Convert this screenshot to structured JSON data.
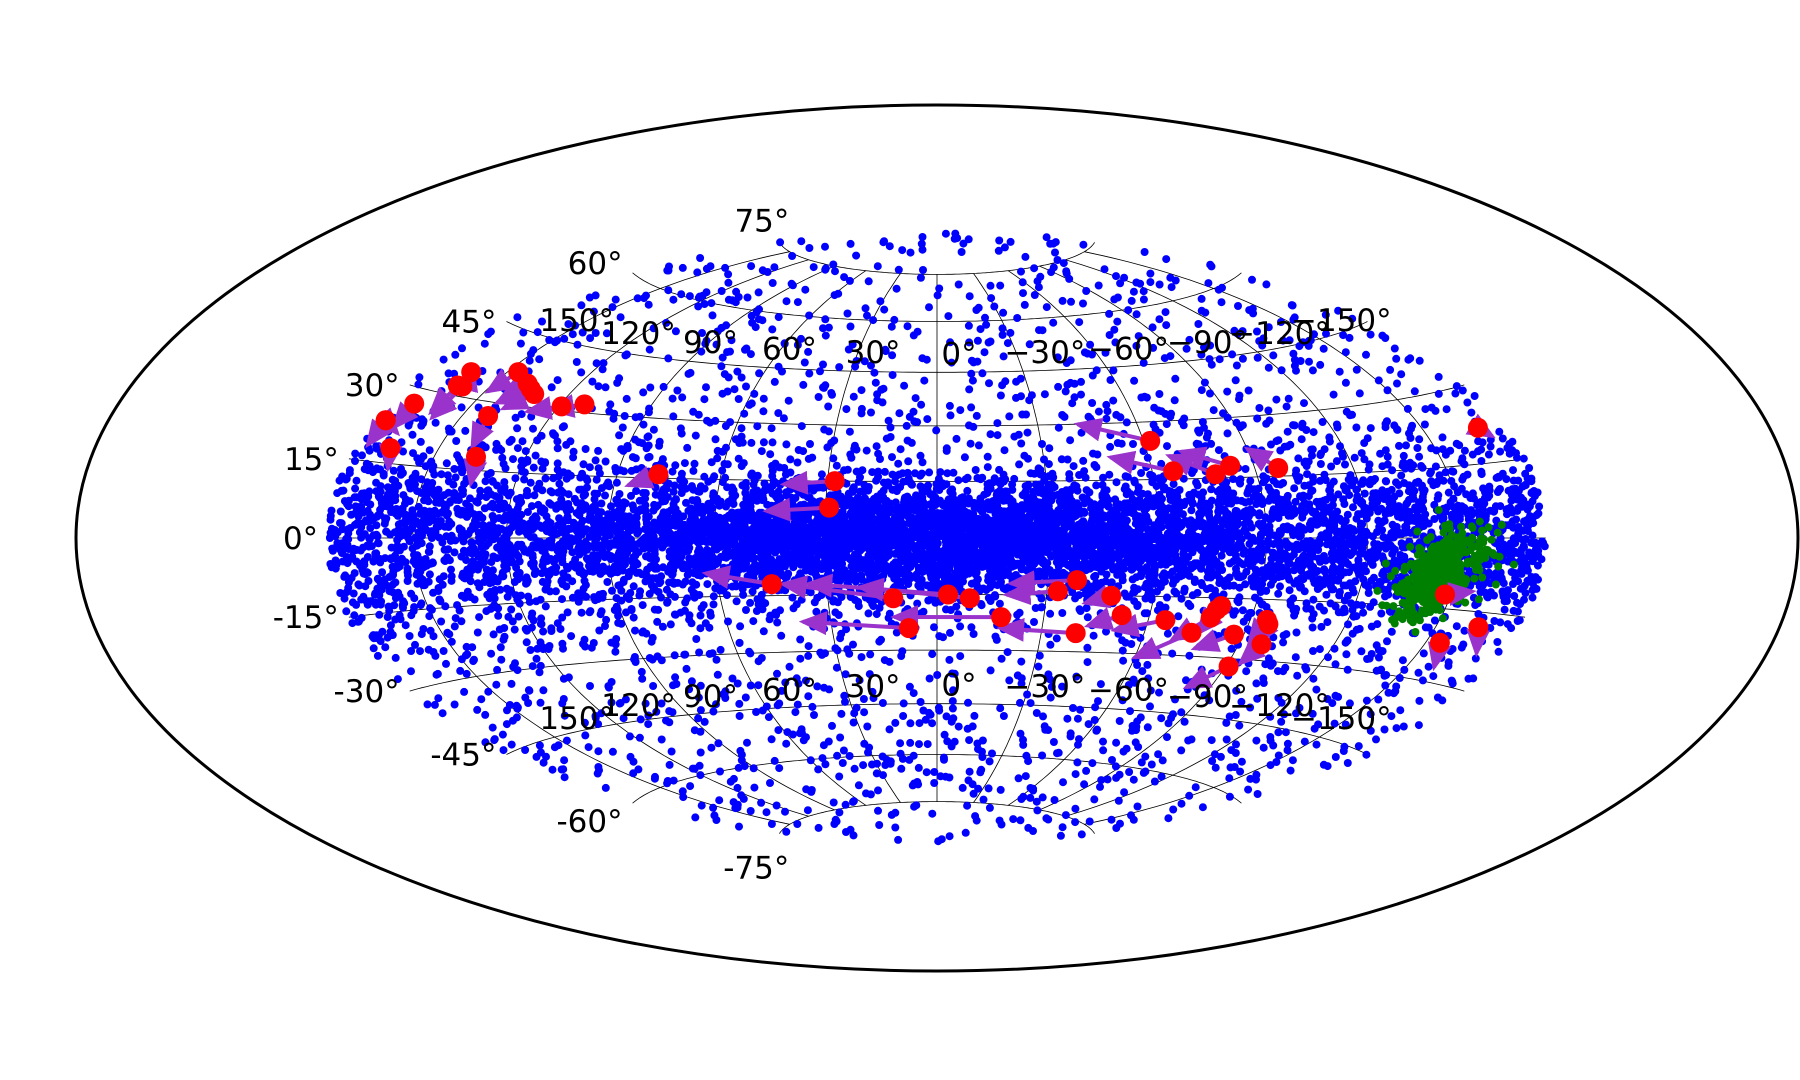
{
  "chart_data": {
    "type": "scatter",
    "projection": "hammer-aitoff",
    "title": "",
    "xlabel": "",
    "ylabel": "",
    "grid": true,
    "xlim": [
      -180,
      180
    ],
    "ylim": [
      -90,
      90
    ],
    "longitude_ticks": [
      "−150°",
      "−120°",
      "−90°",
      "−60°",
      "−30°",
      "0°",
      "30°",
      "60°",
      "90°",
      "120°",
      "150°"
    ],
    "longitude_tick_values": [
      -150,
      -120,
      -90,
      -60,
      -30,
      0,
      30,
      60,
      90,
      120,
      150
    ],
    "longitude_tick_rows_lat": [
      60,
      -60
    ],
    "latitude_ticks": [
      "75°",
      "60°",
      "45°",
      "30°",
      "15°",
      "0°",
      "-15°",
      "-30°",
      "-45°",
      "-60°",
      "-75°"
    ],
    "latitude_tick_values": [
      75,
      60,
      45,
      30,
      15,
      0,
      -15,
      -30,
      -45,
      -60,
      -75
    ],
    "colors": {
      "background_sources": "#0000ff",
      "cluster_sources": "#008000",
      "highlighted": "#ff0000",
      "arrows": "#9933cc",
      "frame": "#000000"
    },
    "background_sources": {
      "name": "",
      "count": 9000,
      "distribution": "concentrated along 0° latitude, densest near 0° longitude, sparse toward the poles"
    },
    "cluster_sources": {
      "name": "",
      "count": 500,
      "center": [
        -145,
        -8
      ],
      "spread": [
        12,
        7
      ]
    },
    "highlighted": [
      {
        "x": -170,
        "y": 22,
        "dx": -3,
        "dy": -2
      },
      {
        "x": -97,
        "y": 17,
        "dx": 7,
        "dy": 5
      },
      {
        "x": -83,
        "y": 18,
        "dx": 13,
        "dy": 4
      },
      {
        "x": -78,
        "y": 16,
        "dx": 12,
        "dy": 5
      },
      {
        "x": -66,
        "y": 17,
        "dx": 17,
        "dy": 4
      },
      {
        "x": -62,
        "y": 25,
        "dx": 20,
        "dy": 5
      },
      {
        "x": 28,
        "y": 15,
        "dx": 14,
        "dy": -1
      },
      {
        "x": 29,
        "y": 8,
        "dx": 17,
        "dy": -1
      },
      {
        "x": 78,
        "y": 16,
        "dx": 8,
        "dy": -3
      },
      {
        "x": 112,
        "y": 32,
        "dx": 10,
        "dy": -2
      },
      {
        "x": 119,
        "y": 31,
        "dx": 10,
        "dy": -2
      },
      {
        "x": 132,
        "y": 33,
        "dx": 6,
        "dy": -4
      },
      {
        "x": 135,
        "y": 34,
        "dx": 7,
        "dy": -4
      },
      {
        "x": 138,
        "y": 35,
        "dx": 4,
        "dy": -4
      },
      {
        "x": 146,
        "y": 37,
        "dx": 3,
        "dy": -5
      },
      {
        "x": 141,
        "y": 27,
        "dx": -2,
        "dy": -7
      },
      {
        "x": 136,
        "y": 18,
        "dx": -2,
        "dy": -6
      },
      {
        "x": 163,
        "y": 35,
        "dx": 2,
        "dy": 1
      },
      {
        "x": 160,
        "y": 32,
        "dx": 0,
        "dy": -7
      },
      {
        "x": 162,
        "y": 32,
        "dx": 0,
        "dy": -6
      },
      {
        "x": 171,
        "y": 27,
        "dx": 0,
        "dy": -5
      },
      {
        "x": 176,
        "y": 23,
        "dx": -8,
        "dy": -2
      },
      {
        "x": 176,
        "y": 23,
        "dx": 0,
        "dy": -5
      },
      {
        "x": 167,
        "y": 18,
        "dx": -3,
        "dy": -4
      },
      {
        "x": -148,
        "y": -12,
        "dx": -9,
        "dy": 1
      },
      {
        "x": -165,
        "y": -18,
        "dx": -6,
        "dy": -5
      },
      {
        "x": -155,
        "y": -22,
        "dx": -5,
        "dy": -5
      },
      {
        "x": -97,
        "y": -26,
        "dx": 3,
        "dy": -5
      },
      {
        "x": -95,
        "y": -20,
        "dx": 2,
        "dy": -6
      },
      {
        "x": -96,
        "y": -21,
        "dx": 1,
        "dy": -5
      },
      {
        "x": -91,
        "y": -32,
        "dx": 9,
        "dy": -6
      },
      {
        "x": -87,
        "y": -24,
        "dx": 10,
        "dy": -4
      },
      {
        "x": -80,
        "y": -17,
        "dx": 4,
        "dy": -7
      },
      {
        "x": -79,
        "y": -18,
        "dx": 3,
        "dy": -6
      },
      {
        "x": -78,
        "y": -20,
        "dx": 9,
        "dy": -6
      },
      {
        "x": -74,
        "y": -24,
        "dx": 14,
        "dy": -7
      },
      {
        "x": -65,
        "y": -21,
        "dx": 14,
        "dy": -3
      },
      {
        "x": -52,
        "y": -20,
        "dx": 9,
        "dy": -3
      },
      {
        "x": -48,
        "y": -15,
        "dx": 7,
        "dy": -2
      },
      {
        "x": -33,
        "y": -14,
        "dx": 14,
        "dy": -1
      },
      {
        "x": -38,
        "y": -11,
        "dx": 18,
        "dy": -1
      },
      {
        "x": -40,
        "y": -25,
        "dx": 22,
        "dy": 1
      },
      {
        "x": -18,
        "y": -21,
        "dx": 30,
        "dy": 0
      },
      {
        "x": -9,
        "y": -16,
        "dx": 30,
        "dy": 3
      },
      {
        "x": -3,
        "y": -15,
        "dx": 38,
        "dy": 3
      },
      {
        "x": 8,
        "y": -24,
        "dx": 30,
        "dy": 2
      },
      {
        "x": 12,
        "y": -16,
        "dx": 30,
        "dy": 4
      },
      {
        "x": 45,
        "y": -12,
        "dx": 18,
        "dy": 3
      }
    ]
  }
}
